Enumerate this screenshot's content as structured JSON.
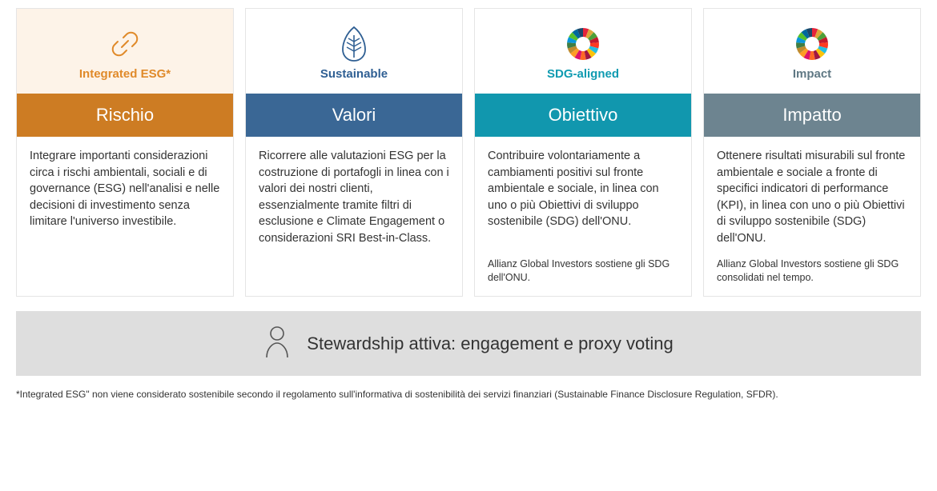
{
  "cards": [
    {
      "icon": "link",
      "icon_stroke": "#e08a2a",
      "icon_bg": "#fdf3e8",
      "subtitle": "Integrated ESG*",
      "subtitle_color": "#e08a2a",
      "header": "Rischio",
      "header_bg": "#cd7c23",
      "body": "Integrare importanti considerazioni circa i rischi ambientali, sociali e di governance (ESG) nell'analisi e nelle decisioni di investimento senza limitare l'universo investibile.",
      "footnote": ""
    },
    {
      "icon": "leaf",
      "icon_stroke": "#2f5f93",
      "icon_bg": "#ffffff",
      "subtitle": "Sustainable",
      "subtitle_color": "#2f5f93",
      "header": "Valori",
      "header_bg": "#3a6795",
      "body": "Ricorrere alle valutazioni ESG per la costruzione di portafogli in linea con i valori dei nostri clienti, essenzialmente tramite filtri di esclusione e Climate Engagement o considerazioni SRI Best-in-Class.",
      "footnote": ""
    },
    {
      "icon": "sdg",
      "icon_stroke": "#0f9bb1",
      "icon_bg": "#ffffff",
      "subtitle": "SDG-aligned",
      "subtitle_color": "#0f9bb1",
      "header": "Obiettivo",
      "header_bg": "#1197ae",
      "body": "Contribuire volontariamente a cambiamenti positivi sul fronte ambientale e sociale, in linea con uno o più Obiettivi di sviluppo sostenibile (SDG) dell'ONU.",
      "footnote": "Allianz Global Investors sostiene gli SDG dell'ONU."
    },
    {
      "icon": "sdg",
      "icon_stroke": "#5f7884",
      "icon_bg": "#ffffff",
      "subtitle": "Impact",
      "subtitle_color": "#5f7884",
      "header": "Impatto",
      "header_bg": "#6d8490",
      "body": "Ottenere risultati misurabili sul fronte ambientale e sociale a fronte di specifici indicatori di performance (KPI), in linea con uno o più Obiettivi di sviluppo sostenibile (SDG) dell'ONU.",
      "footnote": "Allianz Global Investors sostiene gli SDG consolidati nel tempo."
    }
  ],
  "sdg_colors": [
    "#e5243b",
    "#dda63a",
    "#4c9f38",
    "#c5192d",
    "#ff3a21",
    "#26bde2",
    "#fcc30b",
    "#a21942",
    "#fd6925",
    "#dd1367",
    "#fd9d24",
    "#bf8b2e",
    "#3f7e44",
    "#0a97d9",
    "#56c02b",
    "#00689d",
    "#19486a"
  ],
  "stewardship": {
    "text": "Stewardship attiva: engagement e proxy voting"
  },
  "bottom_note": "*Integrated ESG\" non viene considerato sostenibile secondo il regolamento sull'informativa di sostenibilità dei servizi finanziari (Sustainable Finance Disclosure Regulation, SFDR)."
}
